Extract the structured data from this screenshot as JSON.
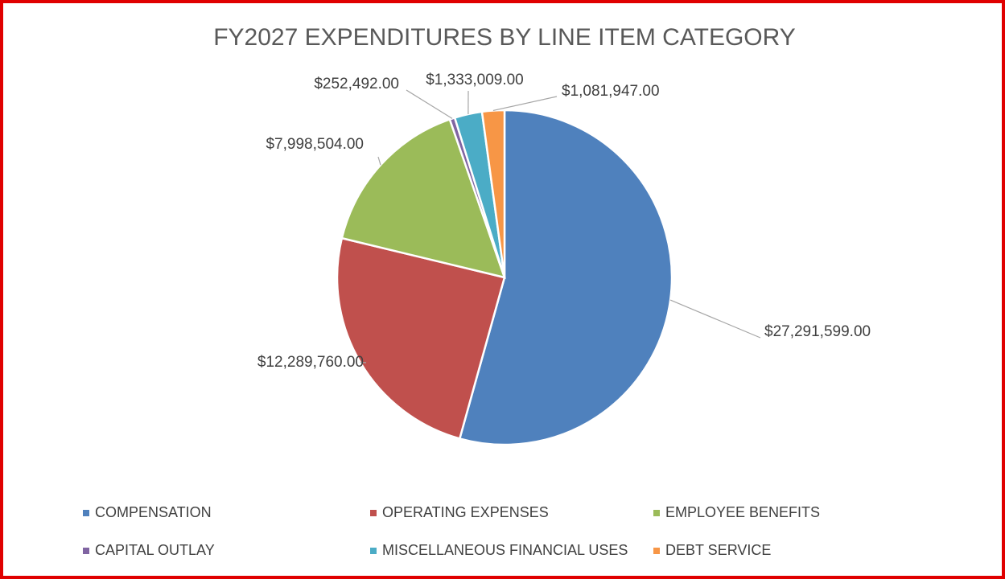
{
  "chart_data": {
    "type": "pie",
    "title": "FY2027 EXPENDITURES BY LINE ITEM CATEGORY",
    "categories": [
      "COMPENSATION",
      "OPERATING EXPENSES",
      "EMPLOYEE BENEFITS",
      "CAPITAL OUTLAY",
      "MISCELLANEOUS FINANCIAL USES",
      "DEBT SERVICE"
    ],
    "values": [
      27291599,
      12289760,
      7998504,
      252492,
      1333009,
      1081947
    ],
    "value_labels": [
      "$27,291,599.00",
      "$12,289,760.00",
      "$7,998,504.00",
      "$252,492.00",
      "$1,333,009.00",
      "$1,081,947.00"
    ],
    "colors": [
      "#4f81bd",
      "#c0504d",
      "#9bbb59",
      "#8064a2",
      "#4bacc6",
      "#f79646"
    ],
    "legend": "bottom"
  }
}
